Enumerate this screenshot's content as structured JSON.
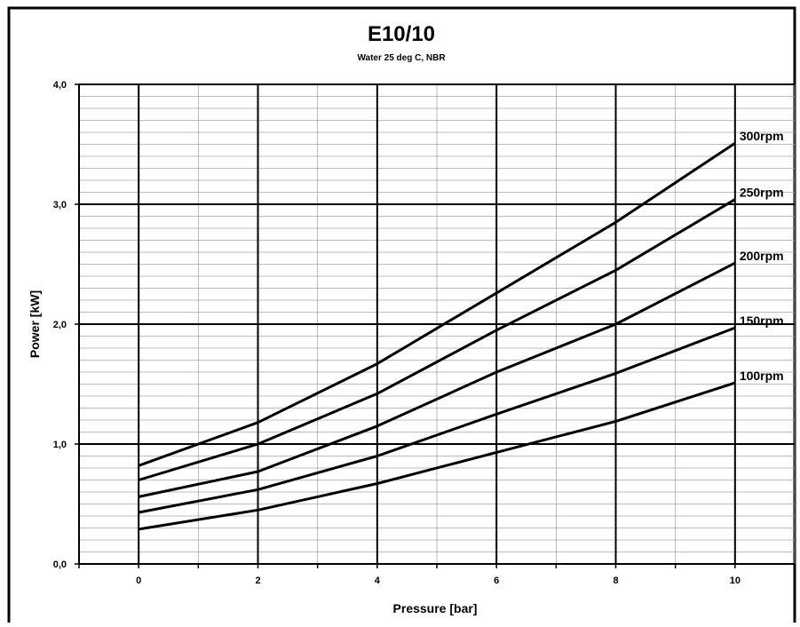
{
  "chart_data": {
    "type": "line",
    "title": "E10/10",
    "subtitle": "Water 25 deg C, NBR",
    "xlabel": "Pressure [bar]",
    "ylabel": "Power [kW]",
    "xlim": [
      -1,
      11
    ],
    "ylim": [
      0,
      4
    ],
    "x_ticks": [
      0,
      2,
      4,
      6,
      8,
      10
    ],
    "x_tick_labels": [
      "0",
      "2",
      "4",
      "6",
      "8",
      "10"
    ],
    "y_ticks": [
      0,
      1,
      2,
      3,
      4
    ],
    "y_tick_labels": [
      "0,0",
      "1,0",
      "2,0",
      "3,0",
      "4,0"
    ],
    "grid": true,
    "legend": "labels at line ends",
    "series": [
      {
        "name": "100rpm",
        "x": [
          0,
          2,
          4,
          6,
          8,
          10
        ],
        "values": [
          0.29,
          0.45,
          0.67,
          0.93,
          1.19,
          1.51
        ]
      },
      {
        "name": "150rpm",
        "x": [
          0,
          2,
          4,
          6,
          8,
          10
        ],
        "values": [
          0.43,
          0.62,
          0.9,
          1.25,
          1.59,
          1.97
        ]
      },
      {
        "name": "200rpm",
        "x": [
          0,
          2,
          4,
          6,
          8,
          10
        ],
        "values": [
          0.56,
          0.77,
          1.15,
          1.6,
          2.0,
          2.51
        ]
      },
      {
        "name": "250rpm",
        "x": [
          0,
          2,
          4,
          6,
          8,
          10
        ],
        "values": [
          0.7,
          1.0,
          1.42,
          1.95,
          2.45,
          3.04
        ]
      },
      {
        "name": "300rpm",
        "x": [
          0,
          2,
          4,
          6,
          8,
          10
        ],
        "values": [
          0.82,
          1.18,
          1.67,
          2.26,
          2.85,
          3.51
        ]
      }
    ],
    "line_color": "#000000",
    "border_color": "#000000"
  }
}
